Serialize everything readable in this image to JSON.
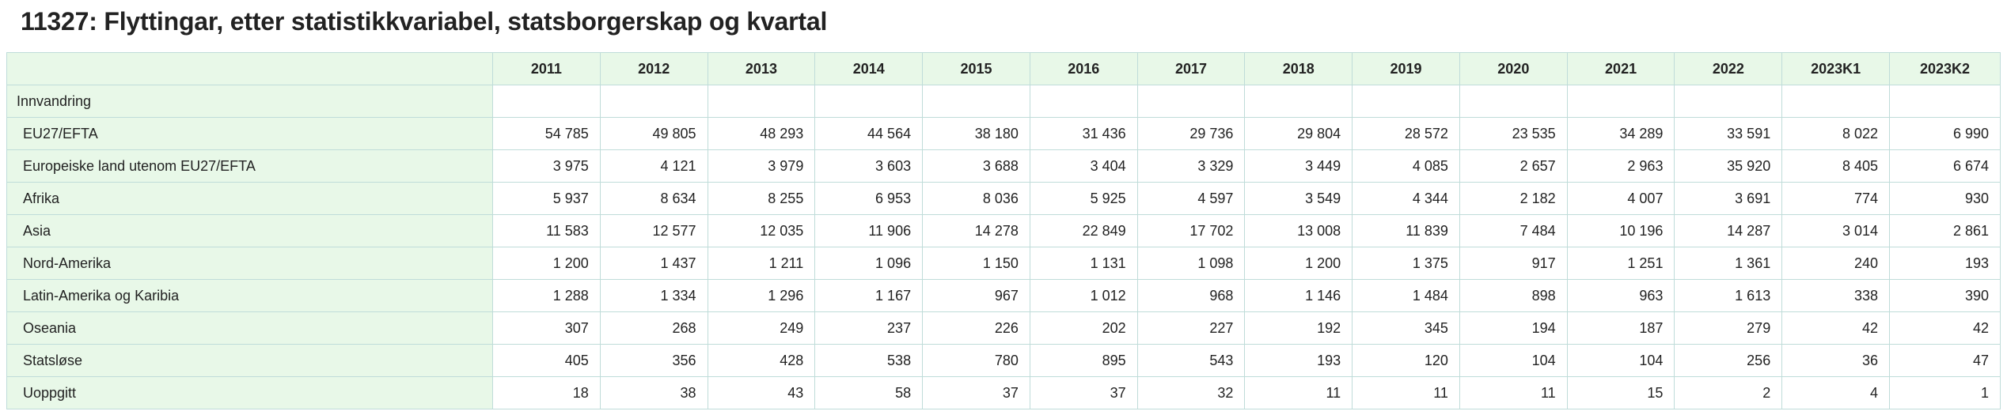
{
  "page": {
    "title": "11327: Flyttingar, etter statistikkvariabel, statsborgerskap og kvartal"
  },
  "table": {
    "columns": [
      "2011",
      "2012",
      "2013",
      "2014",
      "2015",
      "2016",
      "2017",
      "2018",
      "2019",
      "2020",
      "2021",
      "2022",
      "2023K1",
      "2023K2"
    ],
    "group_label": "Innvandring",
    "rows": [
      {
        "label": "EU27/EFTA",
        "values": [
          "54 785",
          "49 805",
          "48 293",
          "44 564",
          "38 180",
          "31 436",
          "29 736",
          "29 804",
          "28 572",
          "23 535",
          "34 289",
          "33 591",
          "8 022",
          "6 990"
        ]
      },
      {
        "label": "Europeiske land utenom EU27/EFTA",
        "values": [
          "3 975",
          "4 121",
          "3 979",
          "3 603",
          "3 688",
          "3 404",
          "3 329",
          "3 449",
          "4 085",
          "2 657",
          "2 963",
          "35 920",
          "8 405",
          "6 674"
        ]
      },
      {
        "label": "Afrika",
        "values": [
          "5 937",
          "8 634",
          "8 255",
          "6 953",
          "8 036",
          "5 925",
          "4 597",
          "3 549",
          "4 344",
          "2 182",
          "4 007",
          "3 691",
          "774",
          "930"
        ]
      },
      {
        "label": "Asia",
        "values": [
          "11 583",
          "12 577",
          "12 035",
          "11 906",
          "14 278",
          "22 849",
          "17 702",
          "13 008",
          "11 839",
          "7 484",
          "10 196",
          "14 287",
          "3 014",
          "2 861"
        ]
      },
      {
        "label": "Nord-Amerika",
        "values": [
          "1 200",
          "1 437",
          "1 211",
          "1 096",
          "1 150",
          "1 131",
          "1 098",
          "1 200",
          "1 375",
          "917",
          "1 251",
          "1 361",
          "240",
          "193"
        ]
      },
      {
        "label": "Latin-Amerika og Karibia",
        "values": [
          "1 288",
          "1 334",
          "1 296",
          "1 167",
          "967",
          "1 012",
          "968",
          "1 146",
          "1 484",
          "898",
          "963",
          "1 613",
          "338",
          "390"
        ]
      },
      {
        "label": "Oseania",
        "values": [
          "307",
          "268",
          "249",
          "237",
          "226",
          "202",
          "227",
          "192",
          "345",
          "194",
          "187",
          "279",
          "42",
          "42"
        ]
      },
      {
        "label": "Statsløse",
        "values": [
          "405",
          "356",
          "428",
          "538",
          "780",
          "895",
          "543",
          "193",
          "120",
          "104",
          "104",
          "256",
          "36",
          "47"
        ]
      },
      {
        "label": "Uoppgitt",
        "values": [
          "18",
          "38",
          "43",
          "58",
          "37",
          "37",
          "32",
          "11",
          "11",
          "11",
          "15",
          "2",
          "4",
          "1"
        ]
      }
    ]
  }
}
